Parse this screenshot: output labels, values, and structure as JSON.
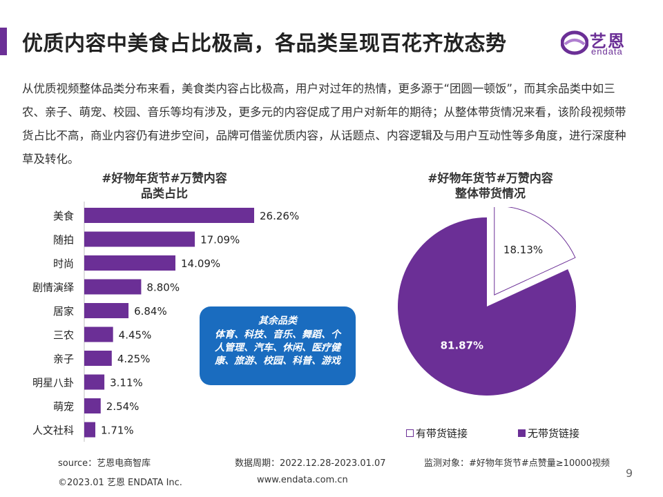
{
  "header": {
    "title": "优质内容中美食占比极高，各品类呈现百花齐放态势",
    "logo_cn": "艺恩",
    "logo_en": "endata"
  },
  "intro": "从优质视频整体品类分布来看，美食类内容占比极高，用户对过年的热情，更多源于“团圆一顿饭”，而其余品类中如三农、亲子、萌宠、校园、音乐等均有涉及，更多元的内容促成了用户对新年的期待；从整体带货情况来看，该阶段视频带货占比不高，商业内容仍有进步空间，品牌可借鉴优质内容，从话题点、内容逻辑及与用户互动性等多角度，进行深度种草及转化。",
  "callout": {
    "title": "其余品类",
    "body": "体育、科技、音乐、舞蹈、个人管理、汽车、休闲、医疗健康、旅游、校园、科普、游戏"
  },
  "colors": {
    "accent": "#6b2f96",
    "callout": "#1a6cbf"
  },
  "chart_data": [
    {
      "type": "bar",
      "orientation": "horizontal",
      "title": "#好物年货节#万赞内容\n品类占比",
      "title_lines": [
        "#好物年货节#万赞内容",
        "品类占比"
      ],
      "categories": [
        "美食",
        "随拍",
        "时尚",
        "剧情演绎",
        "居家",
        "三农",
        "亲子",
        "明星八卦",
        "萌宠",
        "人文社科"
      ],
      "values": [
        26.26,
        17.09,
        14.09,
        8.8,
        6.84,
        4.45,
        4.25,
        3.11,
        2.54,
        1.71
      ],
      "labels": [
        "26.26%",
        "17.09%",
        "14.09%",
        "8.80%",
        "6.84%",
        "4.45%",
        "4.25%",
        "3.11%",
        "2.54%",
        "1.71%"
      ],
      "unit": "%",
      "xlim": [
        0,
        26.26
      ],
      "grid": false,
      "color": "#6b2f96"
    },
    {
      "type": "pie",
      "title": "#好物年货节#万赞内容\n整体带货情况",
      "title_lines": [
        "#好物年货节#万赞内容",
        "整体带货情况"
      ],
      "slices": [
        {
          "name": "有带货链接",
          "value": 18.13,
          "label": "18.13%",
          "color": "#ffffff",
          "exploded": true
        },
        {
          "name": "无带货链接",
          "value": 81.87,
          "label": "81.87%",
          "color": "#6b2f96",
          "exploded": false
        }
      ],
      "legend_position": "bottom"
    }
  ],
  "footer": {
    "source": "source：艺恩电商智库",
    "period": "数据周期：2022.12.28-2023.01.07",
    "monitor": "监测对象：#好物年货节#点赞量≥10000视频",
    "copyright": "©2023.01 艺恩 ENDATA Inc.",
    "site": "www.endata.com.cn",
    "page": "9"
  }
}
